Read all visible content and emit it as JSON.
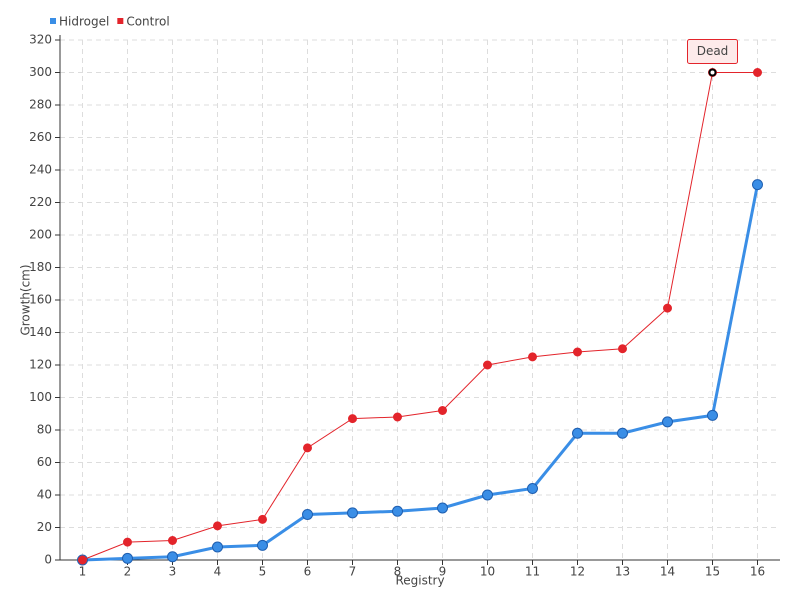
{
  "chart_data": {
    "type": "line",
    "x_label": "Registry",
    "y_label": "Growth(cm)",
    "categories": [
      "1",
      "2",
      "3",
      "4",
      "5",
      "6",
      "7",
      "8",
      "9",
      "10",
      "11",
      "12",
      "13",
      "14",
      "15",
      "16"
    ],
    "series": [
      {
        "name": "Hidrogel",
        "color": "#3a8ee6",
        "values": [
          0,
          1,
          2,
          8,
          9,
          28,
          29,
          30,
          32,
          40,
          44,
          78,
          78,
          85,
          89,
          231
        ]
      },
      {
        "name": "Control",
        "color": "#e3242b",
        "values": [
          0,
          11,
          12,
          21,
          25,
          69,
          87,
          88,
          92,
          120,
          125,
          128,
          130,
          155,
          300,
          300
        ]
      }
    ],
    "annotation": {
      "text": "Dead",
      "series": "Control",
      "category": "15"
    },
    "ylim": [
      0,
      320
    ],
    "yticks": [
      0,
      20,
      40,
      60,
      80,
      100,
      120,
      140,
      160,
      180,
      200,
      220,
      240,
      260,
      280,
      300,
      320
    ],
    "grid": true,
    "legend": "top-left"
  }
}
